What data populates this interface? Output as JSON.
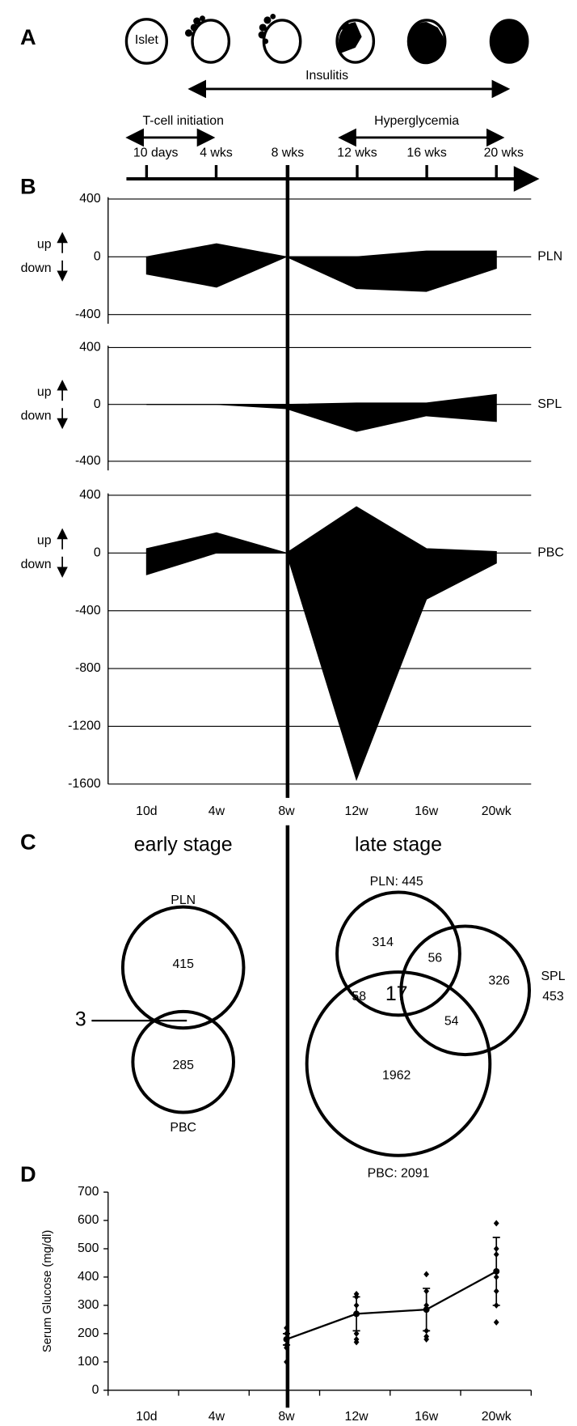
{
  "panels": [
    "A",
    "B",
    "C",
    "D"
  ],
  "timeline": {
    "islet": "Islet",
    "insulitis": "Insulitis",
    "t_cell": "T-cell initiation",
    "hyperglycemia": "Hyperglycemia",
    "ticks": [
      "10 days",
      "4 wks",
      "8 wks",
      "12 wks",
      "16 wks",
      "20 wks"
    ]
  },
  "venn": {
    "early": {
      "title": "early stage",
      "top_label": "PLN",
      "top": 415,
      "overlap": 3,
      "bottom": 285,
      "bottom_label": "PBC"
    },
    "late": {
      "title": "late stage",
      "pln_label": "PLN: 445",
      "pln_only": 314,
      "pln_spl": 56,
      "spl_only": 326,
      "spl_label": "SPL",
      "spl_total": 453,
      "pln_pbc": 58,
      "all": 17,
      "spl_pbc": 54,
      "pbc_only": 1962,
      "pbc_label": "PBC: 2091"
    }
  },
  "chart_data": [
    {
      "type": "area",
      "label": "PLN",
      "annotations": [
        "up",
        "down"
      ],
      "ylim": [
        -400,
        400
      ],
      "yticks": [
        -400,
        0,
        400
      ],
      "grid": true,
      "color": "#000000",
      "series": [
        {
          "values": [
            0,
            90,
            0,
            0,
            40,
            40
          ]
        },
        {
          "values": [
            -120,
            -210,
            0,
            -220,
            -240,
            -80
          ]
        }
      ]
    },
    {
      "type": "area",
      "label": "SPL",
      "annotations": [
        "up",
        "down"
      ],
      "ylim": [
        -400,
        400
      ],
      "yticks": [
        -400,
        0,
        400
      ],
      "grid": true,
      "color": "#000000",
      "series": [
        {
          "values": [
            0,
            0,
            0,
            10,
            10,
            70
          ]
        },
        {
          "values": [
            0,
            0,
            -30,
            -190,
            -80,
            -120
          ]
        }
      ]
    },
    {
      "type": "area",
      "label": "PBC",
      "annotations": [
        "up",
        "down"
      ],
      "ylim": [
        -1600,
        400
      ],
      "yticks": [
        -1600,
        -1200,
        -800,
        -400,
        0,
        400
      ],
      "grid": true,
      "color": "#000000",
      "categories": [
        "10d",
        "4w",
        "8w",
        "12w",
        "16w",
        "20wk"
      ],
      "series": [
        {
          "values": [
            30,
            140,
            0,
            320,
            30,
            10
          ]
        },
        {
          "values": [
            -150,
            0,
            0,
            -1570,
            -320,
            -70
          ]
        }
      ]
    },
    {
      "type": "line",
      "ylabel": "Serum Glucose (mg/dl)",
      "categories": [
        "10d",
        "4w",
        "8w",
        "12w",
        "16w",
        "20wk"
      ],
      "values": [
        null,
        null,
        180,
        270,
        285,
        420
      ],
      "errors": [
        null,
        null,
        20,
        60,
        75,
        120
      ],
      "points": [
        [],
        [],
        [
          220,
          200,
          180,
          160,
          150,
          100
        ],
        [
          340,
          330,
          300,
          200,
          180,
          170
        ],
        [
          410,
          350,
          300,
          210,
          190,
          180
        ],
        [
          590,
          500,
          480,
          400,
          350,
          300,
          240
        ]
      ],
      "ylim": [
        0,
        700
      ],
      "yticks": [
        0,
        100,
        200,
        300,
        400,
        500,
        600,
        700
      ],
      "color": "#000000"
    }
  ]
}
